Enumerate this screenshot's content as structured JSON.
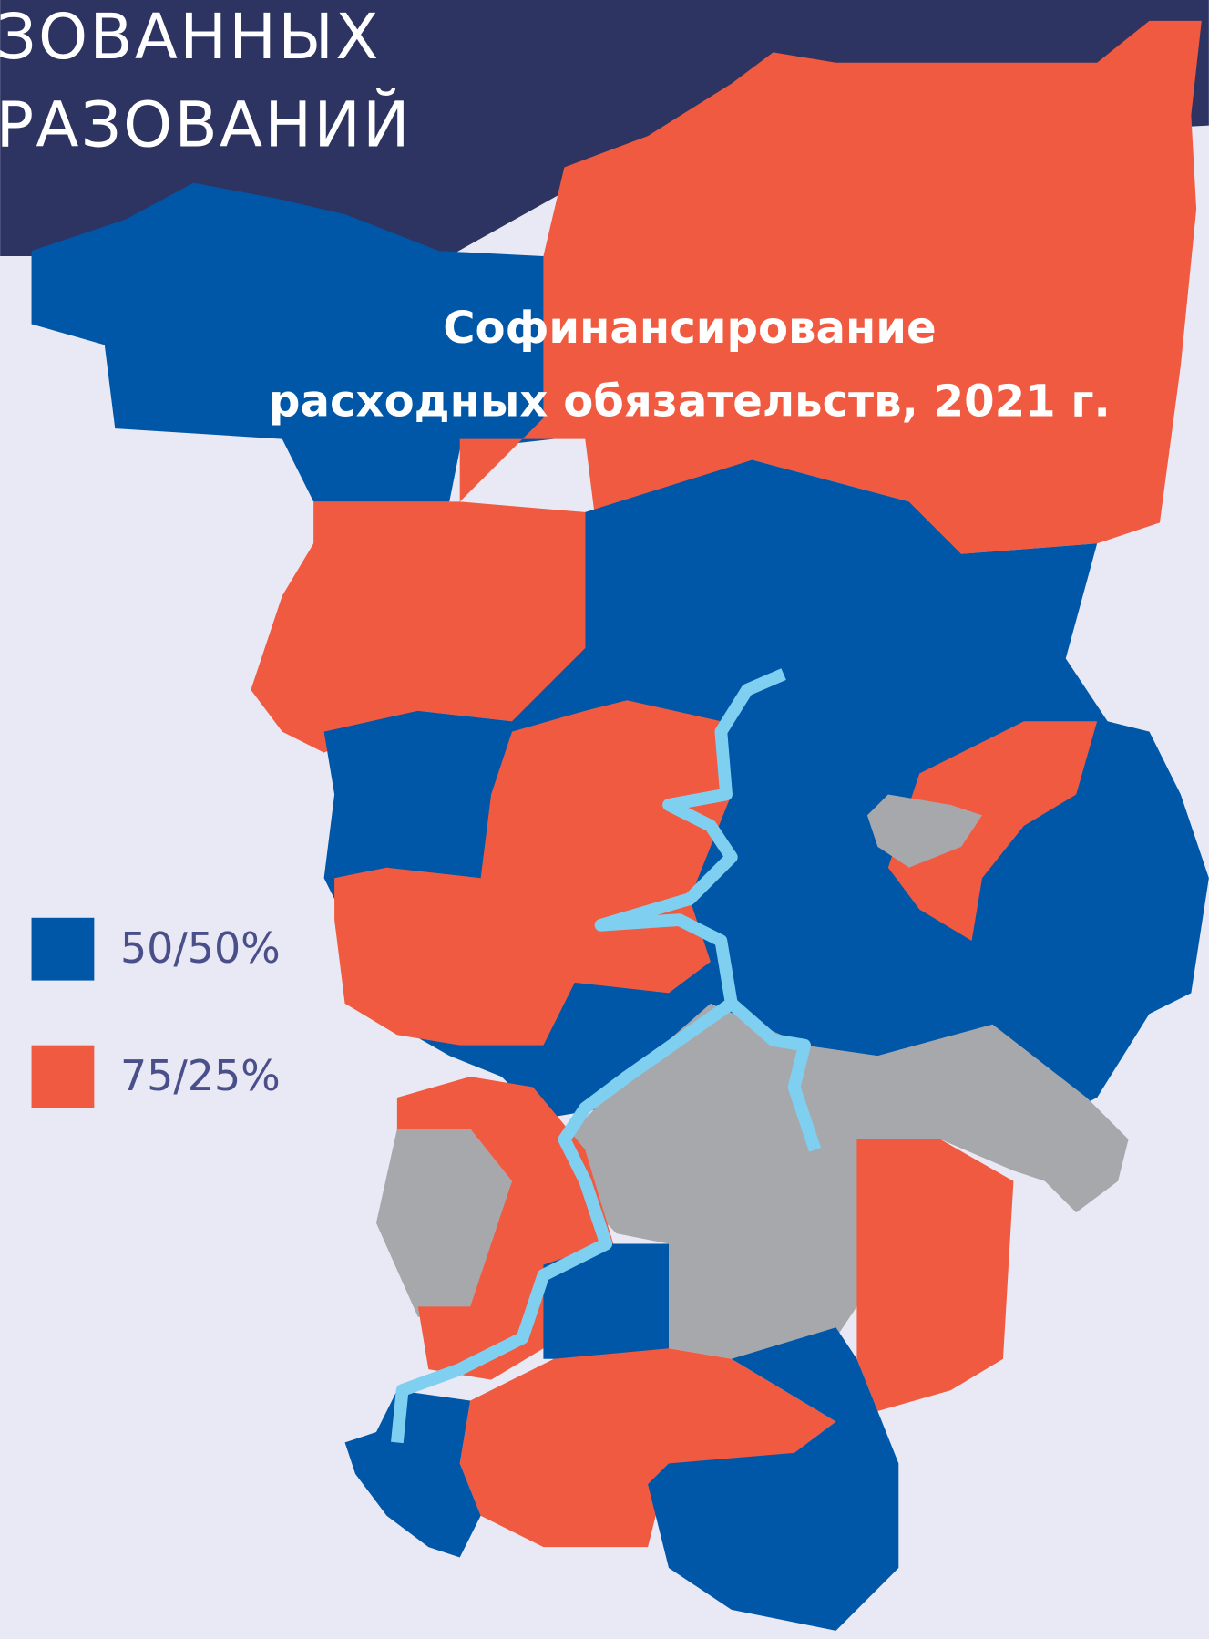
{
  "header": {
    "lines": [
      "ЗОВАННЫХ",
      "РАЗОВАНИЙ"
    ]
  },
  "map": {
    "title": [
      "Софинансирование",
      "расходных обязательств, 2021 г."
    ]
  },
  "legend": [
    {
      "label": "50/50%",
      "color": "#0057a8"
    },
    {
      "label": "75/25%",
      "color": "#f05a40"
    }
  ]
}
